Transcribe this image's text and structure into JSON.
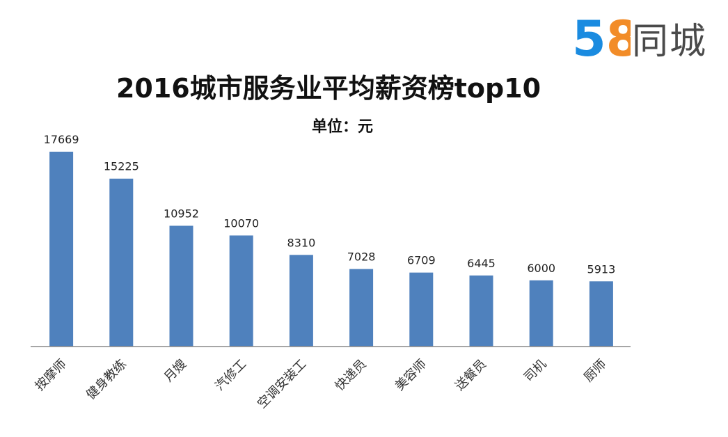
{
  "logo": {
    "number": "58",
    "text": "同城"
  },
  "colors": {
    "bar": "#4f81bd",
    "axis": "#888888",
    "logo_blue": "#1a8be0",
    "logo_green": "#7dc242",
    "logo_orange": "#f28c28",
    "logo_red": "#e94b3c"
  },
  "chart_data": {
    "type": "bar",
    "title": "2016城市服务业平均薪资榜top10",
    "subtitle": "单位：元",
    "categories": [
      "按摩师",
      "健身教练",
      "月嫂",
      "汽修工",
      "空调安装工",
      "快递员",
      "美容师",
      "送餐员",
      "司机",
      "厨师"
    ],
    "values": [
      17669,
      15225,
      10952,
      10070,
      8310,
      7028,
      6709,
      6445,
      6000,
      5913
    ],
    "ylim": [
      0,
      20000
    ],
    "grid": false,
    "legend": "none"
  }
}
